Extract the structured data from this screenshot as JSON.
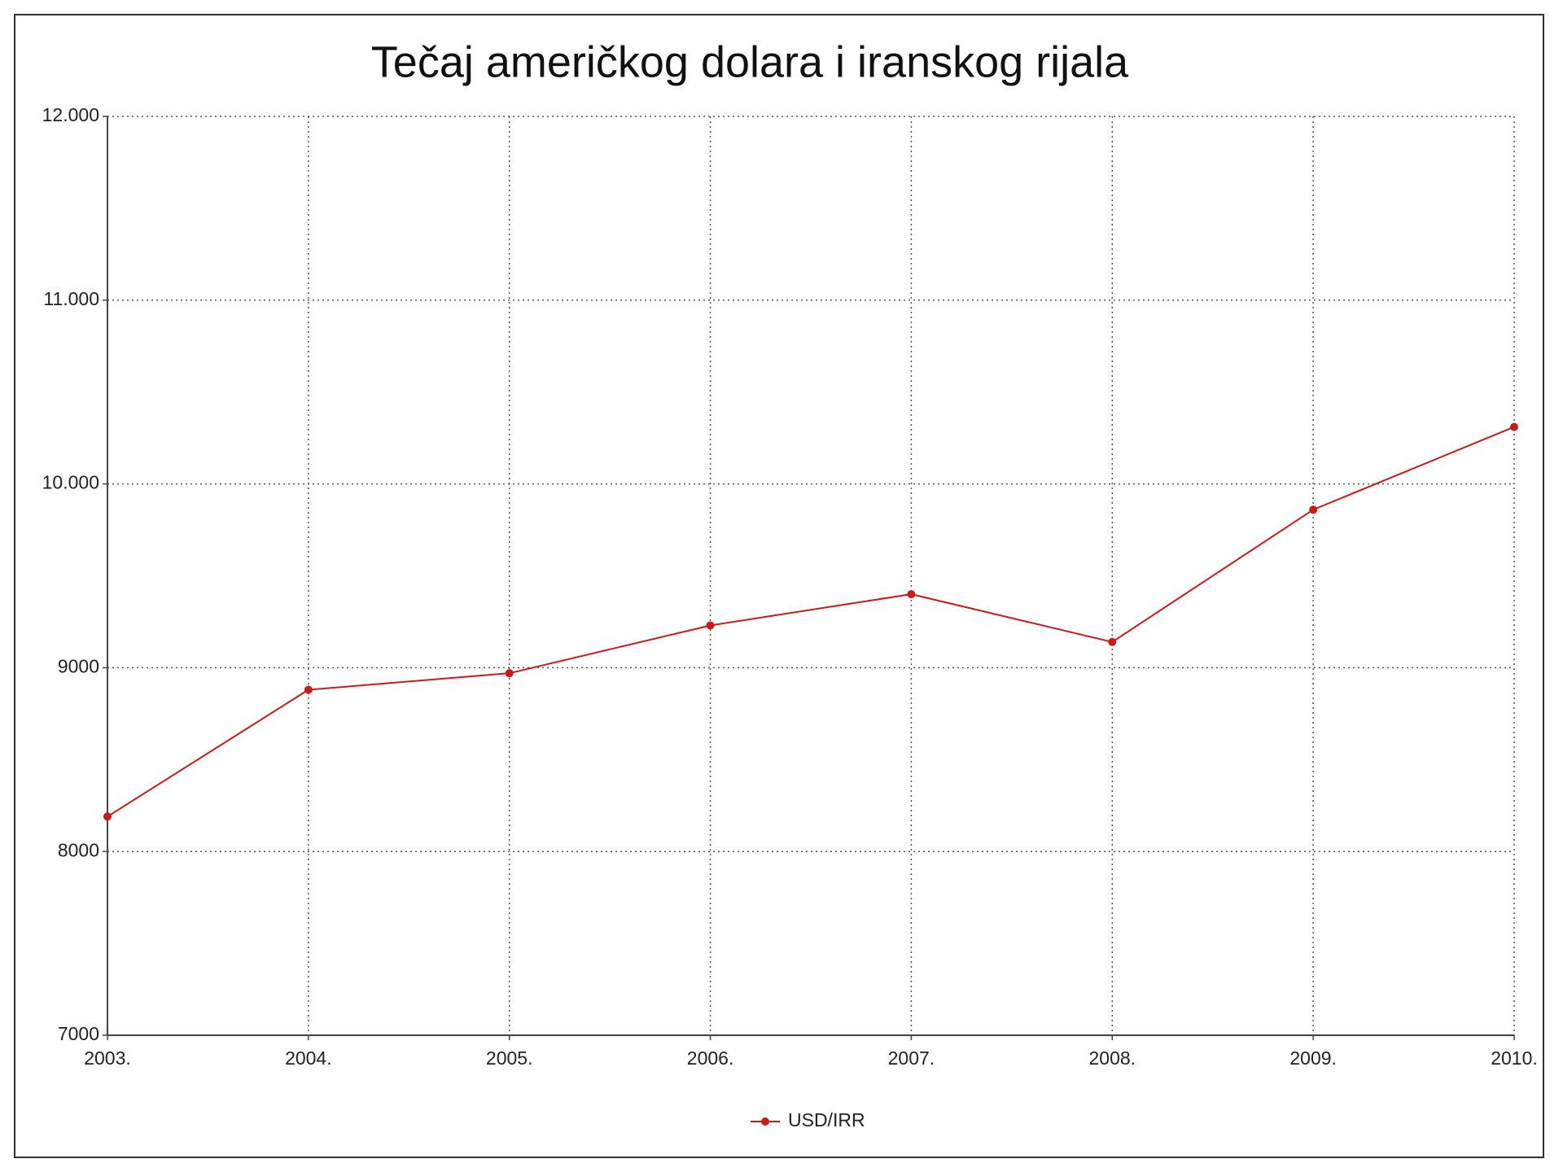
{
  "chart_data": {
    "type": "line",
    "title": "Tečaj američkog dolara i iranskog rijala",
    "categories": [
      "2003.",
      "2004.",
      "2005.",
      "2006.",
      "2007.",
      "2008.",
      "2009.",
      "2010."
    ],
    "series": [
      {
        "name": "USD/IRR",
        "color": "#cc1a1a",
        "values": [
          8190,
          8880,
          8970,
          9230,
          9400,
          9140,
          9860,
          10310
        ]
      }
    ],
    "ylim": [
      7000,
      12000
    ],
    "yticks": [
      7000,
      8000,
      9000,
      {
        "value": 10000,
        "label": "10.000"
      },
      {
        "value": 11000,
        "label": "11.000"
      },
      {
        "value": 12000,
        "label": "12.000"
      }
    ],
    "grid": true,
    "legend": "bottom"
  }
}
